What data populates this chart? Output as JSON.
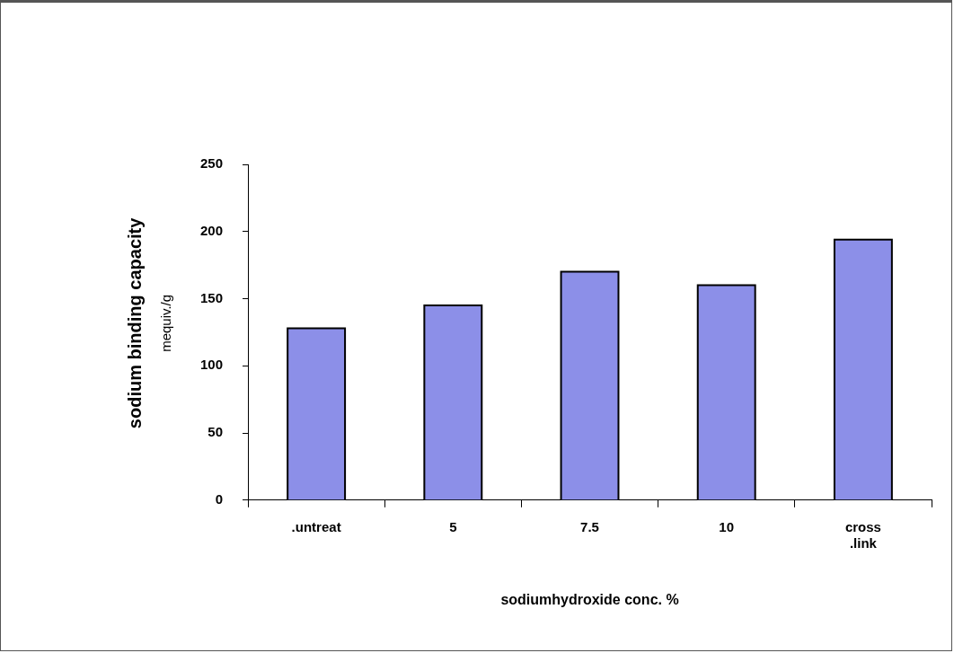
{
  "chart_data": {
    "type": "bar",
    "xlabel": "sodiumhydroxide conc. %",
    "ylabel": "sodium binding capacity\nmequiv./g",
    "categories": [
      ".untreat",
      "5",
      "7.5",
      "10",
      "cross\n.link"
    ],
    "values": [
      128,
      145,
      170,
      160,
      194
    ],
    "color": "#8c8fe8",
    "ylim": [
      0,
      250
    ],
    "yticks": [
      0,
      50,
      100,
      150,
      200,
      250
    ],
    "grid": false,
    "legend": false
  }
}
